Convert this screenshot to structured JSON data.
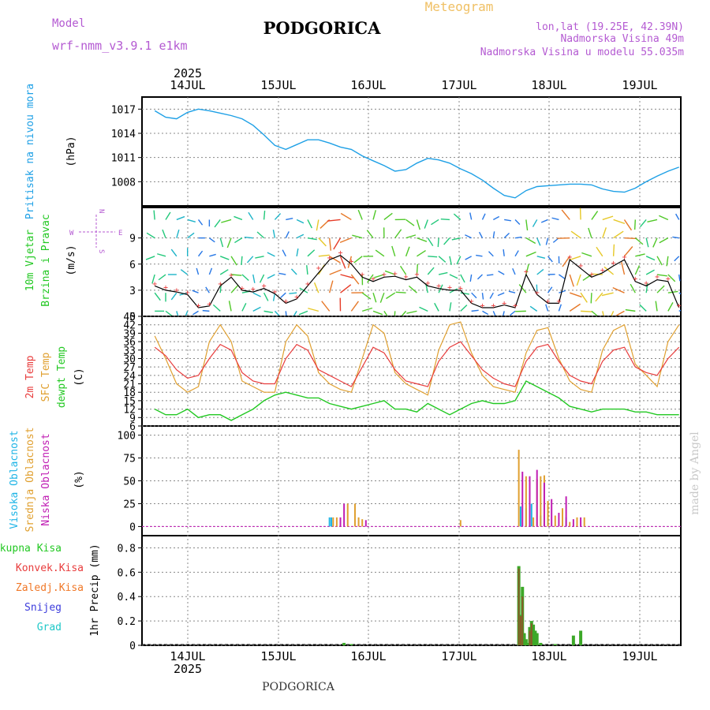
{
  "header": {
    "model_label": "Model",
    "model_name": "wrf-nmm_v3.9.1 e1km",
    "location": "PODGORICA",
    "product": "Meteogram",
    "coords": "lon,lat (19.25E, 42.39N)",
    "elevation": "Nadmorska Visina 49m",
    "model_elevation": "Nadmorska Visina u modelu 55.035m"
  },
  "footer": {
    "location": "PODGORICA",
    "watermark": "made by Angel"
  },
  "time_axis": {
    "year": "2025",
    "days": [
      "14JUL",
      "15JUL",
      "16JUL",
      "17JUL",
      "18JUL",
      "19JUL"
    ]
  },
  "colors": {
    "pressure": "#1ea0e6",
    "wind_speed": "#000000",
    "gust": "#e83c3c",
    "temp2m": "#e83c3c",
    "sfc_temp": "#e0a030",
    "dewpoint": "#22c822",
    "high_cloud": "#1eb4e6",
    "mid_cloud": "#e0a030",
    "low_cloud": "#c01eb4",
    "total_precip": "#22aa22",
    "conv_precip": "#e83c3c",
    "grid": "#888888"
  },
  "panels": {
    "pressure": {
      "labels": [
        "Pritisak na nivou mora"
      ],
      "unit": "(hPa)"
    },
    "wind": {
      "labels": [
        "10m Vjetar",
        "Brzina i Pravac"
      ],
      "unit": "(m/s)",
      "compass": {
        "n": "N",
        "s": "S",
        "e": "E",
        "w": "W"
      }
    },
    "temp": {
      "labels": [
        "2m Temp",
        "SFC Temp",
        "dewpt Temp"
      ],
      "unit": "(C)"
    },
    "cloud": {
      "labels": [
        "Visoka Oblacnost",
        "Srednja Oblacnost",
        "Niska Oblacnost"
      ],
      "unit": "(%)"
    },
    "precip": {
      "labels": [
        "Ukupna Kisa",
        "Konvek.Kisa",
        "Zaledj.Kisa",
        "Snijeg",
        "Grad"
      ],
      "unit": "1hr Precip (mm)"
    }
  },
  "chart_data": [
    {
      "type": "line",
      "name": "pressure",
      "ylabel": "Pritisak na nivou mora (hPa)",
      "ylim": [
        1005,
        1018.5
      ],
      "yticks": [
        1008,
        1011,
        1014,
        1017
      ],
      "x_hours": [
        0,
        3,
        6,
        9,
        12,
        15,
        18,
        21,
        24,
        27,
        30,
        33,
        36,
        39,
        42,
        45,
        48,
        51,
        54,
        57,
        60,
        63,
        66,
        69,
        72,
        75,
        78,
        81,
        84,
        87,
        90,
        93,
        96,
        99,
        102,
        105,
        108,
        111,
        114,
        117,
        120,
        123,
        126,
        129,
        132,
        135,
        138,
        141,
        144
      ],
      "series": [
        {
          "values": [
            1016.8,
            1016.0,
            1015.8,
            1016.6,
            1017.0,
            1016.8,
            1016.5,
            1016.2,
            1015.8,
            1015.0,
            1013.8,
            1012.5,
            1012.0,
            1012.6,
            1013.2,
            1013.2,
            1012.8,
            1012.3,
            1012.0,
            1011.2,
            1010.6,
            1010.0,
            1009.3,
            1009.5,
            1010.3,
            1010.9,
            1010.7,
            1010.3,
            1009.6,
            1009.0,
            1008.2,
            1007.2,
            1006.3,
            1006.0,
            1006.9,
            1007.4,
            1007.5,
            1007.6,
            1007.7,
            1007.7,
            1007.6,
            1007.1,
            1006.8,
            1006.7,
            1007.2,
            1008.0,
            1008.7,
            1009.3,
            1009.8
          ]
        }
      ]
    },
    {
      "type": "line",
      "name": "wind",
      "ylabel": "10m Vjetar Brzina i Pravac (m/s)",
      "ylim": [
        0,
        12.5
      ],
      "yticks": [
        0,
        3,
        6,
        9
      ],
      "x_hours": [
        0,
        3,
        6,
        9,
        12,
        15,
        18,
        21,
        24,
        27,
        30,
        33,
        36,
        39,
        42,
        45,
        48,
        51,
        54,
        57,
        60,
        63,
        66,
        69,
        72,
        75,
        78,
        81,
        84,
        87,
        90,
        93,
        96,
        99,
        102,
        105,
        108,
        111,
        114,
        117,
        120,
        123,
        126,
        129,
        132,
        135,
        138,
        141,
        144
      ],
      "series": [
        {
          "values": [
            3.5,
            3.0,
            2.8,
            2.5,
            1.0,
            1.2,
            3.5,
            4.5,
            3.0,
            2.8,
            3.2,
            2.6,
            1.5,
            2.0,
            3.5,
            5.0,
            6.5,
            7.0,
            6.0,
            4.5,
            4.0,
            4.5,
            4.6,
            4.2,
            4.5,
            3.5,
            3.2,
            3.0,
            3.0,
            1.5,
            1.0,
            1.0,
            1.3,
            1.0,
            4.8,
            2.5,
            1.5,
            1.5,
            6.5,
            5.5,
            4.5,
            5.0,
            5.8,
            6.5,
            4.0,
            3.5,
            4.2,
            4.0,
            1.0
          ]
        },
        {
          "values": [
            3.8,
            3.4,
            3.1,
            2.8,
            1.3,
            1.5,
            3.8,
            4.8,
            3.3,
            3.2,
            3.6,
            2.9,
            1.8,
            2.3,
            3.8,
            5.6,
            6.8,
            7.4,
            6.4,
            4.9,
            4.4,
            4.9,
            5.0,
            4.6,
            4.9,
            3.9,
            3.6,
            3.4,
            3.3,
            1.8,
            1.3,
            1.3,
            1.6,
            1.3,
            5.2,
            2.8,
            1.8,
            1.8,
            6.9,
            5.9,
            4.9,
            5.4,
            6.2,
            6.9,
            4.4,
            3.9,
            4.6,
            4.4,
            1.3
          ]
        }
      ]
    },
    {
      "type": "line",
      "name": "temperature",
      "ylabel": "2m Temp / SFC Temp / dewpt Temp (C)",
      "ylim": [
        6,
        45
      ],
      "yticks": [
        6,
        9,
        12,
        15,
        18,
        21,
        24,
        27,
        30,
        33,
        36,
        39,
        42,
        45
      ],
      "x_hours": [
        0,
        3,
        6,
        9,
        12,
        15,
        18,
        21,
        24,
        27,
        30,
        33,
        36,
        39,
        42,
        45,
        48,
        51,
        54,
        57,
        60,
        63,
        66,
        69,
        72,
        75,
        78,
        81,
        84,
        87,
        90,
        93,
        96,
        99,
        102,
        105,
        108,
        111,
        114,
        117,
        120,
        123,
        126,
        129,
        132,
        135,
        138,
        141,
        144
      ],
      "series": [
        {
          "name": "2m Temp",
          "values": [
            34,
            31,
            26,
            23,
            24,
            30,
            35,
            33,
            25,
            22,
            21,
            21,
            30,
            35,
            33,
            26,
            24,
            22,
            20,
            27,
            34,
            32,
            26,
            22,
            21,
            20,
            29,
            34,
            36,
            31,
            26,
            23,
            21,
            20,
            29,
            34,
            35,
            29,
            24,
            22,
            21,
            29,
            33,
            34,
            27,
            25,
            24,
            30,
            34
          ]
        },
        {
          "name": "SFC Temp",
          "values": [
            38,
            30,
            21,
            18,
            20,
            36,
            42,
            36,
            22,
            20,
            18,
            18,
            36,
            42,
            38,
            25,
            21,
            19,
            18,
            30,
            42,
            39,
            25,
            21,
            19,
            17,
            33,
            42,
            43,
            32,
            24,
            20,
            19,
            18,
            32,
            40,
            41,
            30,
            22,
            19,
            18,
            33,
            40,
            42,
            28,
            24,
            20,
            36,
            42
          ]
        },
        {
          "name": "dewpt Temp",
          "values": [
            12,
            10,
            10,
            12,
            9,
            10,
            10,
            8,
            10,
            12,
            15,
            17,
            18,
            17,
            16,
            16,
            14,
            13,
            12,
            13,
            14,
            15,
            12,
            12,
            11,
            14,
            12,
            10,
            12,
            14,
            15,
            14,
            14,
            15,
            22,
            20,
            18,
            16,
            13,
            12,
            11,
            12,
            12,
            12,
            11,
            11,
            10,
            10,
            10
          ]
        }
      ]
    },
    {
      "type": "bar",
      "name": "cloud",
      "ylabel": "Visoka / Srednja / Niska Oblacnost (%)",
      "ylim": [
        -10,
        110
      ],
      "yticks": [
        0,
        25,
        50,
        75,
        100
      ],
      "series": [
        {
          "name": "Visoka Oblacnost",
          "points": [
            [
              48,
              10
            ],
            [
              48.5,
              10
            ],
            [
              100.5,
              22
            ],
            [
              102,
              20
            ],
            [
              103.5,
              25
            ],
            [
              106,
              12
            ],
            [
              108,
              10
            ],
            [
              113,
              10
            ]
          ]
        },
        {
          "name": "Srednja Oblacnost",
          "points": [
            [
              49,
              10
            ],
            [
              50,
              10
            ],
            [
              53,
              25
            ],
            [
              55,
              25
            ],
            [
              56,
              10
            ],
            [
              57,
              8
            ],
            [
              84,
              7
            ],
            [
              100,
              84
            ],
            [
              102,
              55
            ],
            [
              104,
              10
            ],
            [
              105,
              52
            ],
            [
              106,
              55
            ],
            [
              107,
              56
            ],
            [
              108,
              28
            ],
            [
              110,
              12
            ],
            [
              112,
              20
            ],
            [
              114,
              5
            ],
            [
              116,
              10
            ],
            [
              118,
              10
            ]
          ]
        },
        {
          "name": "Niska Oblacnost",
          "points": [
            [
              51,
              10
            ],
            [
              52,
              25
            ],
            [
              58,
              7
            ],
            [
              101,
              60
            ],
            [
              103,
              55
            ],
            [
              105,
              62
            ],
            [
              107,
              48
            ],
            [
              109,
              30
            ],
            [
              111,
              15
            ],
            [
              113,
              33
            ],
            [
              115,
              8
            ],
            [
              117,
              10
            ]
          ]
        }
      ]
    },
    {
      "type": "bar",
      "name": "precip",
      "ylabel": "1hr Precip (mm)",
      "ylim": [
        0,
        0.9
      ],
      "yticks": [
        0,
        0.2,
        0.4,
        0.6,
        0.8
      ],
      "series": [
        {
          "name": "Ukupna Kisa",
          "points": [
            [
              52,
              0.02
            ],
            [
              54,
              0.01
            ],
            [
              100,
              0.65
            ],
            [
              100.5,
              0.25
            ],
            [
              101,
              0.48
            ],
            [
              101.5,
              0.1
            ],
            [
              102,
              0.05
            ],
            [
              102.5,
              0.02
            ],
            [
              103,
              0.15
            ],
            [
              103.5,
              0.2
            ],
            [
              104,
              0.17
            ],
            [
              104.5,
              0.12
            ],
            [
              105,
              0.1
            ],
            [
              106,
              0.02
            ],
            [
              110,
              0.01
            ],
            [
              115,
              0.08
            ],
            [
              117,
              0.12
            ]
          ]
        },
        {
          "name": "Konvek.Kisa",
          "points": [
            [
              100,
              0.63
            ],
            [
              100.5,
              0.24
            ],
            [
              101,
              0.4
            ],
            [
              103,
              0.12
            ],
            [
              103.5,
              0.18
            ]
          ]
        }
      ]
    }
  ]
}
